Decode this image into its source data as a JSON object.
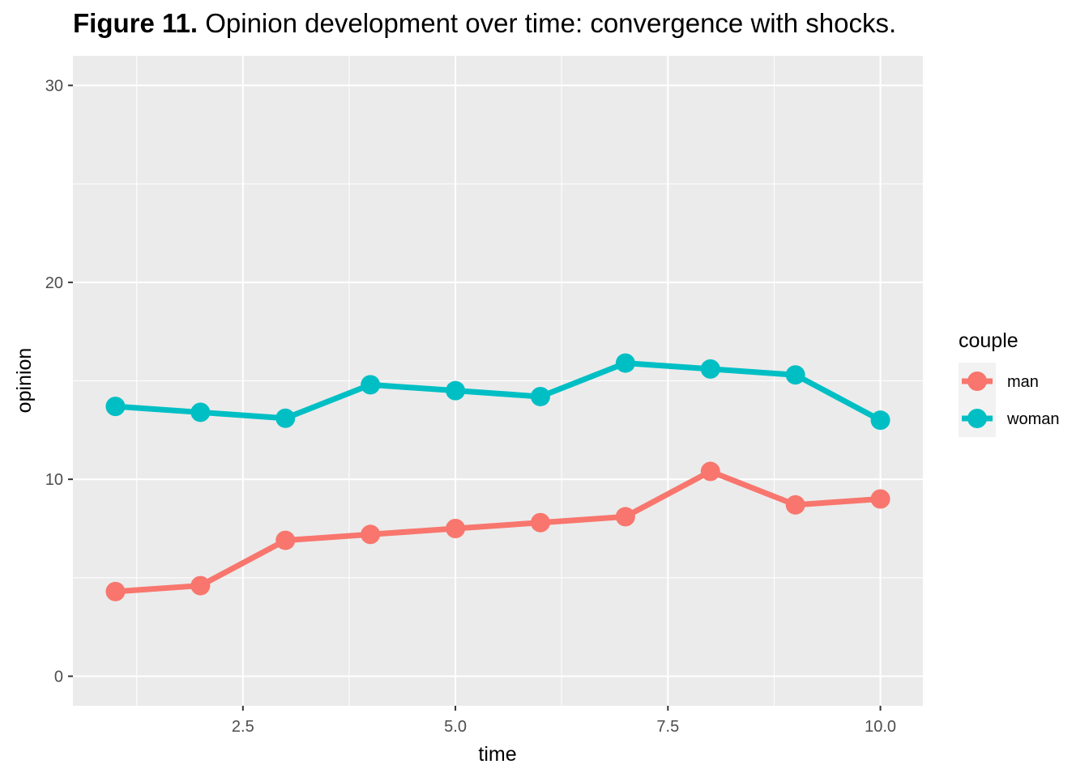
{
  "title": {
    "prefix": "Figure 11.",
    "text": " Opinion development over time: convergence with shocks."
  },
  "chart_data": {
    "type": "line",
    "xlabel": "time",
    "ylabel": "opinion",
    "xlim": [
      0.5,
      10.5
    ],
    "ylim": [
      -1.5,
      31.5
    ],
    "x_ticks": [
      2.5,
      5.0,
      7.5,
      10.0
    ],
    "x_tick_labels": [
      "2.5",
      "5.0",
      "7.5",
      "10.0"
    ],
    "y_ticks": [
      0,
      10,
      20,
      30
    ],
    "y_tick_labels": [
      "0",
      "10",
      "20",
      "30"
    ],
    "grid": true,
    "panel_color": "#EBEBEB",
    "legend": {
      "title": "couple",
      "position": "right"
    },
    "x": [
      1,
      2,
      3,
      4,
      5,
      6,
      7,
      8,
      9,
      10
    ],
    "series": [
      {
        "name": "man",
        "color": "#F8766D",
        "values": [
          4.3,
          4.6,
          6.9,
          7.2,
          7.5,
          7.8,
          8.1,
          10.4,
          8.7,
          9.0
        ]
      },
      {
        "name": "woman",
        "color": "#00BFC4",
        "values": [
          13.7,
          13.4,
          13.1,
          14.8,
          14.5,
          14.2,
          15.9,
          15.6,
          15.3,
          13.0
        ]
      }
    ]
  }
}
